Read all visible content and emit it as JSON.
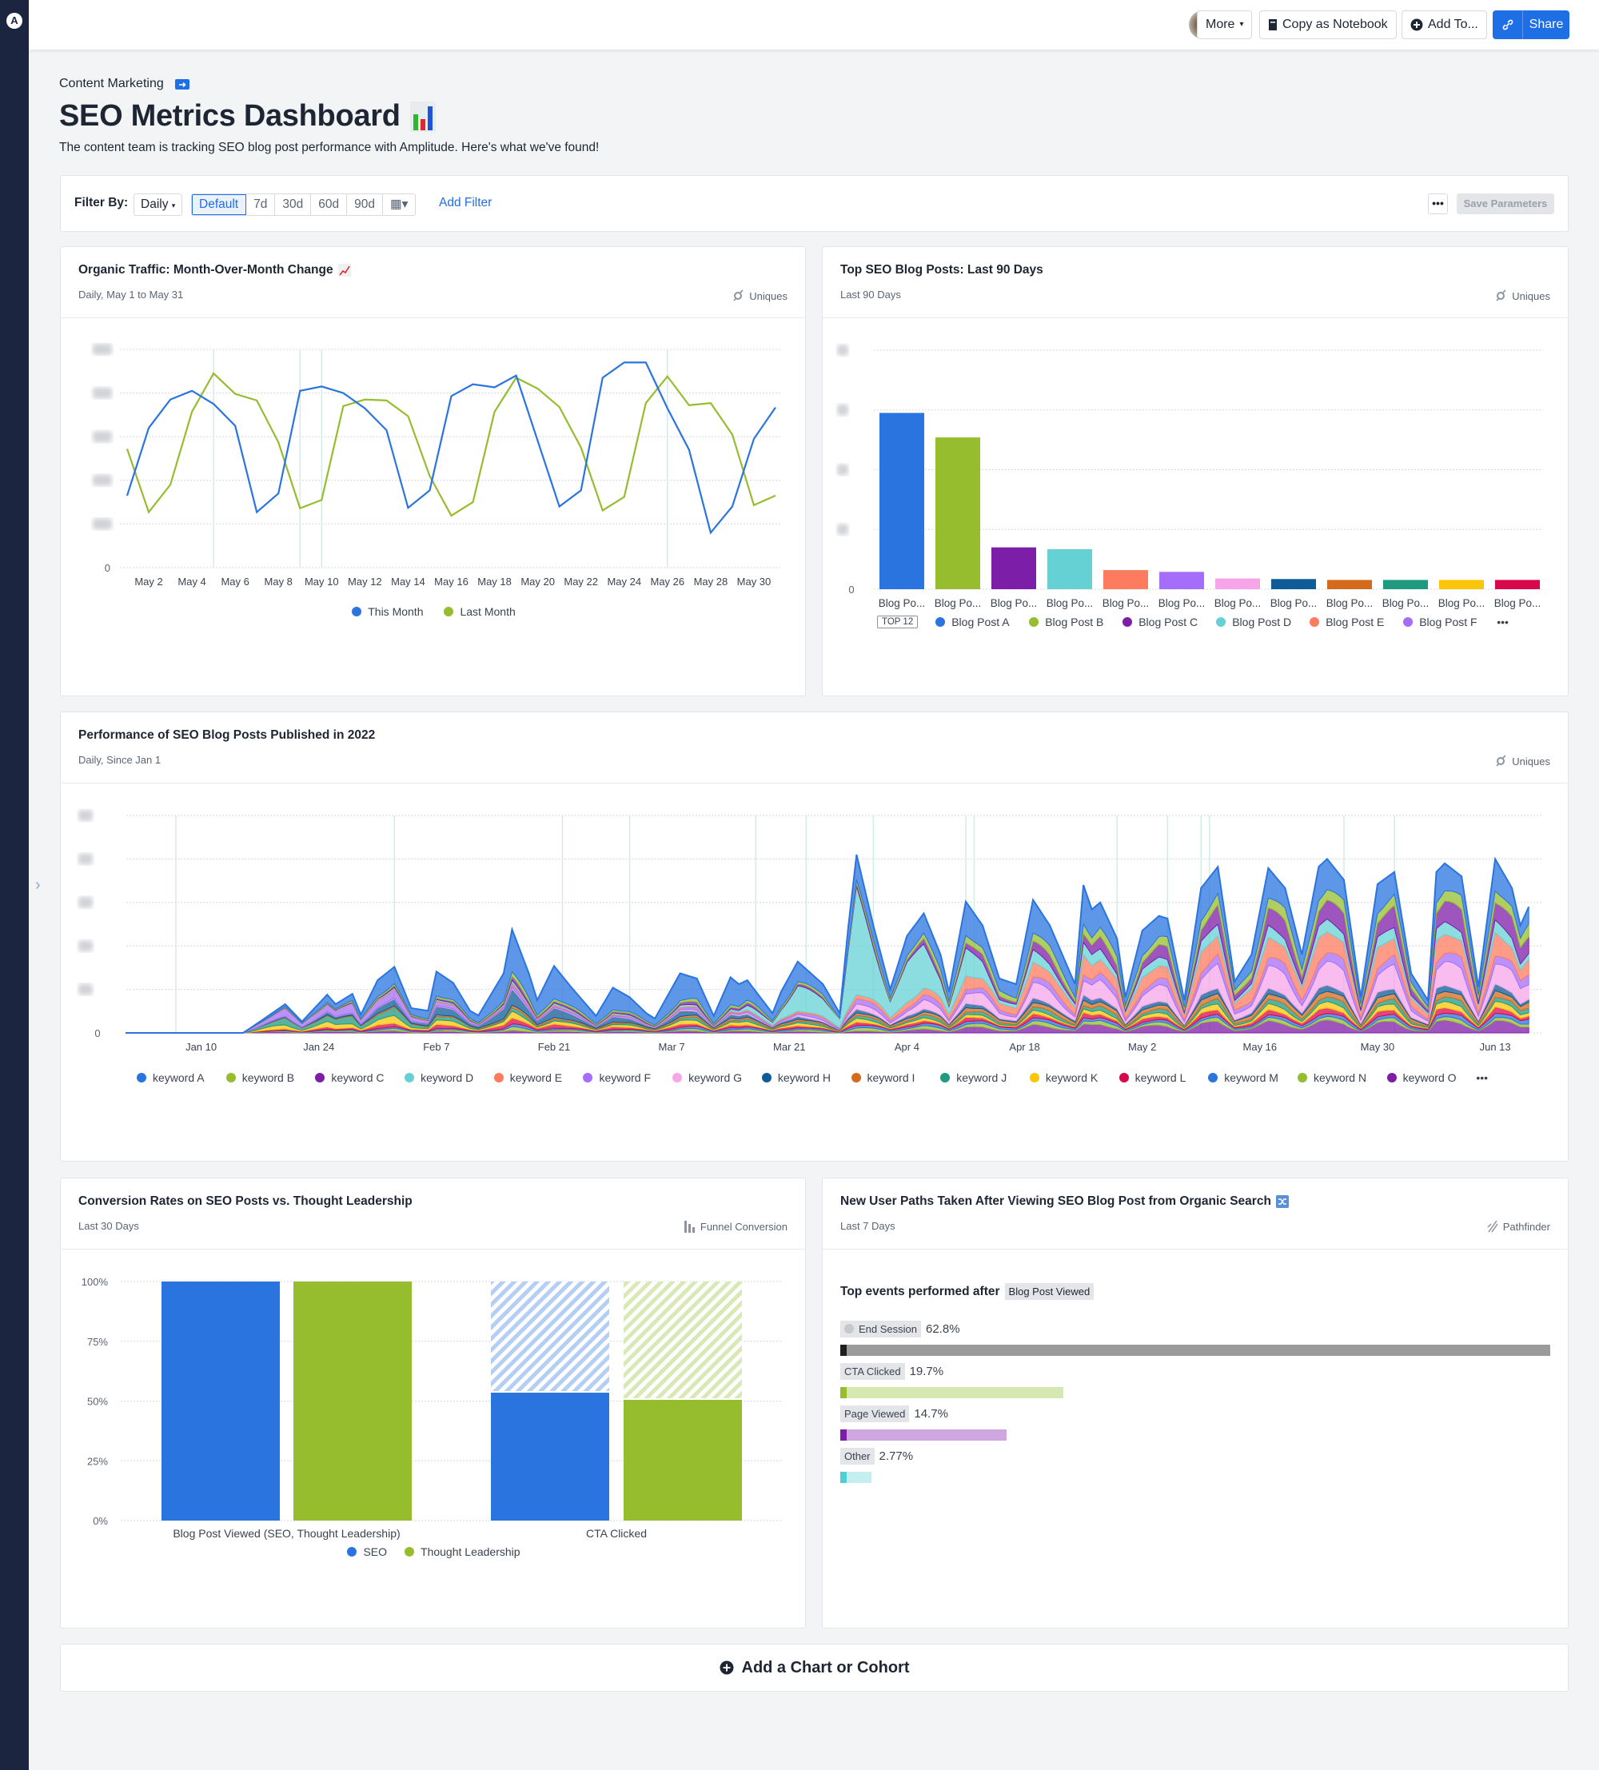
{
  "topbar": {
    "more_label": "More",
    "copy_label": "Copy as Notebook",
    "add_label": "Add To...",
    "share_label": "Share",
    "accent": "#1e6ee6"
  },
  "breadcrumb": "Content Marketing",
  "page": {
    "title": "SEO Metrics Dashboard",
    "description": "The content team is tracking SEO blog post performance with Amplitude. Here's what we've found!"
  },
  "filter": {
    "label": "Filter By:",
    "interval": "Daily",
    "ranges": [
      "Default",
      "7d",
      "30d",
      "60d",
      "90d"
    ],
    "selected_range": "Default",
    "add_filter": "Add Filter",
    "save_parameters": "Save Parameters"
  },
  "cards": {
    "traffic": {
      "title": "Organic Traffic: Month-Over-Month Change",
      "subtitle": "Daily, May 1 to May 31",
      "metric": "Uniques"
    },
    "top_posts": {
      "title": "Top SEO Blog Posts: Last 90 Days",
      "subtitle": "Last 90 Days",
      "metric": "Uniques",
      "top_badge": "TOP 12"
    },
    "performance": {
      "title": "Performance of SEO Blog Posts Published in 2022",
      "subtitle": "Daily, Since Jan 1",
      "metric": "Uniques"
    },
    "conversion": {
      "title": "Conversion Rates on SEO Posts vs. Thought Leadership",
      "subtitle": "Last 30 Days",
      "metric": "Funnel Conversion"
    },
    "paths": {
      "title": "New User Paths Taken After Viewing SEO Blog Post from Organic Search",
      "subtitle": "Last 7 Days",
      "metric": "Pathfinder",
      "heading": "Top events performed after",
      "start_event": "Blog Post Viewed",
      "events": [
        {
          "label": "End Session",
          "percent": "62.8%",
          "value": 62.8,
          "color": "#9b9b9b",
          "cap": "#1e1e1e"
        },
        {
          "label": "CTA Clicked",
          "percent": "19.7%",
          "value": 19.7,
          "color": "#d6e8b0",
          "cap": "#95bd2e"
        },
        {
          "label": "Page Viewed",
          "percent": "14.7%",
          "value": 14.7,
          "color": "#d0a6e0",
          "cap": "#7d1ea8"
        },
        {
          "label": "Other",
          "percent": "2.77%",
          "value": 2.77,
          "color": "#c4eef0",
          "cap": "#4fcfd4"
        }
      ]
    }
  },
  "add_chart_label": "Add a Chart or Cohort",
  "chart_data": [
    {
      "type": "line",
      "ylim": [
        0,
        5
      ],
      "y_tick_labels": [
        "0"
      ],
      "grid": true,
      "legend": "bottom-center",
      "x": [
        "May 1",
        "May 2",
        "May 3",
        "May 4",
        "May 5",
        "May 6",
        "May 7",
        "May 8",
        "May 9",
        "May 10",
        "May 11",
        "May 12",
        "May 13",
        "May 14",
        "May 15",
        "May 16",
        "May 17",
        "May 18",
        "May 19",
        "May 20",
        "May 21",
        "May 22",
        "May 23",
        "May 24",
        "May 25",
        "May 26",
        "May 27",
        "May 28",
        "May 29",
        "May 30",
        "May 31"
      ],
      "x_tick_labels": [
        "May 2",
        "May 4",
        "May 6",
        "May 8",
        "May 10",
        "May 12",
        "May 14",
        "May 16",
        "May 18",
        "May 20",
        "May 22",
        "May 24",
        "May 26",
        "May 28",
        "May 30"
      ],
      "annotation_dates": [
        "May 5",
        "May 9",
        "May 10",
        "May 26"
      ],
      "series": [
        {
          "name": "This Month",
          "color": "#2a74e0",
          "values": [
            1.65,
            3.2,
            3.85,
            4.05,
            3.75,
            3.25,
            1.27,
            1.7,
            4.05,
            4.15,
            4.0,
            3.65,
            3.15,
            1.37,
            1.77,
            3.93,
            4.2,
            4.13,
            4.4,
            2.9,
            1.4,
            1.77,
            4.35,
            4.7,
            4.7,
            3.65,
            2.7,
            0.8,
            1.4,
            2.95,
            3.67
          ]
        },
        {
          "name": "Last Month",
          "color": "#95bd2e",
          "values": [
            2.72,
            1.27,
            1.9,
            3.57,
            4.45,
            3.98,
            3.83,
            2.87,
            1.36,
            1.55,
            3.7,
            3.85,
            3.83,
            3.47,
            2.1,
            1.19,
            1.5,
            3.57,
            4.35,
            4.1,
            3.68,
            2.75,
            1.31,
            1.62,
            3.77,
            4.38,
            3.72,
            3.77,
            3.05,
            1.43,
            1.65
          ]
        }
      ]
    },
    {
      "type": "bar",
      "ylim": [
        0,
        4
      ],
      "y_tick_labels": [
        "0"
      ],
      "grid": true,
      "categories": [
        "Blog Po...",
        "Blog Po...",
        "Blog Po...",
        "Blog Po...",
        "Blog Po...",
        "Blog Po...",
        "Blog Po...",
        "Blog Po...",
        "Blog Po...",
        "Blog Po...",
        "Blog Po...",
        "Blog Po..."
      ],
      "values": [
        2.95,
        2.54,
        0.7,
        0.67,
        0.32,
        0.29,
        0.18,
        0.17,
        0.155,
        0.155,
        0.155,
        0.155
      ],
      "colors": [
        "#2a74e0",
        "#95bd2e",
        "#7d1ea8",
        "#66d1d4",
        "#fd7b5f",
        "#a46efa",
        "#f6a6e8",
        "#0e5b98",
        "#d46b1c",
        "#1f9a80",
        "#fbc60a",
        "#d9084a"
      ],
      "legend": [
        {
          "name": "Blog Post A",
          "color": "#2a74e0"
        },
        {
          "name": "Blog Post B",
          "color": "#95bd2e"
        },
        {
          "name": "Blog Post C",
          "color": "#7d1ea8"
        },
        {
          "name": "Blog Post D",
          "color": "#66d1d4"
        },
        {
          "name": "Blog Post E",
          "color": "#fd7b5f"
        },
        {
          "name": "Blog Post F",
          "color": "#a46efa"
        }
      ],
      "legend_more": "•••"
    },
    {
      "type": "area",
      "stacked": true,
      "ylim": [
        0,
        5
      ],
      "y_tick_labels": [
        "0"
      ],
      "grid": true,
      "x_tick_labels": [
        "Jan 10",
        "Jan 24",
        "Feb 7",
        "Feb 21",
        "Mar 7",
        "Mar 21",
        "Apr 4",
        "Apr 18",
        "May 2",
        "May 16",
        "May 30",
        "Jun 13"
      ],
      "x_range": [
        "Jan 1",
        "Jun 17"
      ],
      "annotation_dates": [
        "Jan 7",
        "Feb 2",
        "Feb 22",
        "Mar 2",
        "Mar 17",
        "Mar 23",
        "Mar 31",
        "Apr 11",
        "Apr 12",
        "Apr 29",
        "May 5",
        "May 9",
        "May 10",
        "May 26",
        "Jun 1"
      ],
      "total": [
        [
          "Jan 1",
          0
        ],
        [
          "Jan 15",
          0
        ],
        [
          "Jan 17",
          0.26
        ],
        [
          "Jan 20",
          0.66
        ],
        [
          "Jan 22",
          0.26
        ],
        [
          "Jan 25",
          0.88
        ],
        [
          "Jan 26",
          0.66
        ],
        [
          "Jan 28",
          0.9
        ],
        [
          "Jan 29",
          0.42
        ],
        [
          "Jan 31",
          1.21
        ],
        [
          "Feb 2",
          1.52
        ],
        [
          "Feb 4",
          0.57
        ],
        [
          "Feb 6",
          0.51
        ],
        [
          "Feb 7",
          1.41
        ],
        [
          "Feb 9",
          1.15
        ],
        [
          "Feb 11",
          0.51
        ],
        [
          "Feb 12",
          0.4
        ],
        [
          "Feb 15",
          1.37
        ],
        [
          "Feb 16",
          2.38
        ],
        [
          "Feb 18",
          1.37
        ],
        [
          "Feb 19",
          0.75
        ],
        [
          "Feb 21",
          1.54
        ],
        [
          "Feb 23",
          1.06
        ],
        [
          "Feb 26",
          0.39
        ],
        [
          "Feb 28",
          1.04
        ],
        [
          "Mar 2",
          0.82
        ],
        [
          "Mar 4",
          0.45
        ],
        [
          "Mar 5",
          0.33
        ],
        [
          "Mar 8",
          1.37
        ],
        [
          "Mar 10",
          1.25
        ],
        [
          "Mar 12",
          0.39
        ],
        [
          "Mar 14",
          1.28
        ],
        [
          "Mar 15",
          1.12
        ],
        [
          "Mar 16",
          1.21
        ],
        [
          "Mar 19",
          0.45
        ],
        [
          "Mar 20",
          0.94
        ],
        [
          "Mar 22",
          1.64
        ],
        [
          "Mar 25",
          1.12
        ],
        [
          "Mar 27",
          0.45
        ],
        [
          "Mar 28",
          2.41
        ],
        [
          "Mar 29",
          4.1
        ],
        [
          "Mar 31",
          2.47
        ],
        [
          "Apr 2",
          1.0
        ],
        [
          "Apr 4",
          2.23
        ],
        [
          "Apr 6",
          2.75
        ],
        [
          "Apr 8",
          1.8
        ],
        [
          "Apr 9",
          0.94
        ],
        [
          "Apr 11",
          3.02
        ],
        [
          "Apr 13",
          2.47
        ],
        [
          "Apr 15",
          1.25
        ],
        [
          "Apr 17",
          1.12
        ],
        [
          "Apr 19",
          3.06
        ],
        [
          "Apr 21",
          2.47
        ],
        [
          "Apr 24",
          1.12
        ],
        [
          "Apr 25",
          3.4
        ],
        [
          "Apr 26",
          2.84
        ],
        [
          "Apr 27",
          3.0
        ],
        [
          "Apr 29",
          2.17
        ],
        [
          "Apr 30",
          0.82
        ],
        [
          "May 2",
          2.35
        ],
        [
          "May 4",
          2.69
        ],
        [
          "May 5",
          2.63
        ],
        [
          "May 7",
          0.75
        ],
        [
          "May 9",
          3.33
        ],
        [
          "May 11",
          3.82
        ],
        [
          "May 13",
          1.18
        ],
        [
          "May 15",
          1.8
        ],
        [
          "May 17",
          3.79
        ],
        [
          "May 19",
          3.33
        ],
        [
          "May 21",
          1.8
        ],
        [
          "May 23",
          3.82
        ],
        [
          "May 24",
          4.0
        ],
        [
          "May 26",
          3.52
        ],
        [
          "May 28",
          0.82
        ],
        [
          "May 30",
          3.42
        ],
        [
          "Jun 1",
          3.7
        ],
        [
          "Jun 3",
          1.37
        ],
        [
          "Jun 5",
          0.75
        ],
        [
          "Jun 6",
          3.7
        ],
        [
          "Jun 7",
          3.9
        ],
        [
          "Jun 9",
          3.6
        ],
        [
          "Jun 11",
          1.06
        ],
        [
          "Jun 13",
          4.0
        ],
        [
          "Jun 15",
          3.33
        ],
        [
          "Jun 16",
          2.47
        ],
        [
          "Jun 17",
          2.9
        ]
      ],
      "share_dates": [
        "Jan 15",
        "Feb 15",
        "Mar 15",
        "Mar 29",
        "Apr 15",
        "May 15",
        "Jun 17"
      ],
      "series": [
        {
          "name": "keyword A",
          "color": "#2a74e0",
          "share": [
            5,
            45,
            40,
            15,
            25,
            18,
            15
          ]
        },
        {
          "name": "keyword B",
          "color": "#95bd2e",
          "share": [
            2,
            5,
            5,
            3,
            8,
            8,
            8
          ]
        },
        {
          "name": "keyword C",
          "color": "#7d1ea8",
          "share": [
            1,
            3,
            4,
            2,
            6,
            10,
            12
          ]
        },
        {
          "name": "keyword D",
          "color": "#66d1d4",
          "share": [
            1,
            2,
            3,
            55,
            8,
            6,
            6
          ]
        },
        {
          "name": "keyword E",
          "color": "#fd7b5f",
          "share": [
            1,
            2,
            2,
            3,
            12,
            14,
            12
          ]
        },
        {
          "name": "keyword F",
          "color": "#a46efa",
          "share": [
            30,
            3,
            3,
            4,
            5,
            6,
            6
          ]
        },
        {
          "name": "keyword G",
          "color": "#f6a6e8",
          "share": [
            1,
            1,
            2,
            3,
            10,
            12,
            12
          ]
        },
        {
          "name": "keyword H",
          "color": "#0e5b98",
          "share": [
            2,
            15,
            5,
            2,
            3,
            3,
            3
          ]
        },
        {
          "name": "keyword I",
          "color": "#d46b1c",
          "share": [
            2,
            3,
            4,
            2,
            4,
            4,
            4
          ]
        },
        {
          "name": "keyword J",
          "color": "#1f9a80",
          "share": [
            25,
            3,
            4,
            2,
            3,
            3,
            3
          ]
        },
        {
          "name": "keyword K",
          "color": "#fbc60a",
          "share": [
            15,
            5,
            5,
            2,
            2,
            3,
            3
          ]
        },
        {
          "name": "keyword L",
          "color": "#d9084a",
          "share": [
            5,
            6,
            4,
            2,
            3,
            3,
            3
          ]
        },
        {
          "name": "keyword M",
          "color": "#2a74e0",
          "share": [
            3,
            3,
            4,
            2,
            3,
            2,
            3
          ]
        },
        {
          "name": "keyword N",
          "color": "#95bd2e",
          "share": [
            3,
            3,
            3,
            2,
            3,
            2,
            2
          ]
        },
        {
          "name": "keyword O",
          "color": "#7d1ea8",
          "share": [
            4,
            2,
            3,
            1,
            5,
            6,
            6
          ]
        }
      ],
      "legend_more": "•••"
    },
    {
      "type": "bar",
      "subtype": "funnel",
      "ylim": [
        0,
        100
      ],
      "y_tick_labels": [
        "0%",
        "25%",
        "50%",
        "75%",
        "100%"
      ],
      "categories": [
        "Blog Post Viewed (SEO, Thought Leadership)",
        "CTA Clicked"
      ],
      "series": [
        {
          "name": "SEO",
          "color": "#2a74e0",
          "values": [
            100,
            53.5
          ]
        },
        {
          "name": "Thought Leadership",
          "color": "#95bd2e",
          "values": [
            100,
            50.5
          ]
        }
      ]
    }
  ]
}
